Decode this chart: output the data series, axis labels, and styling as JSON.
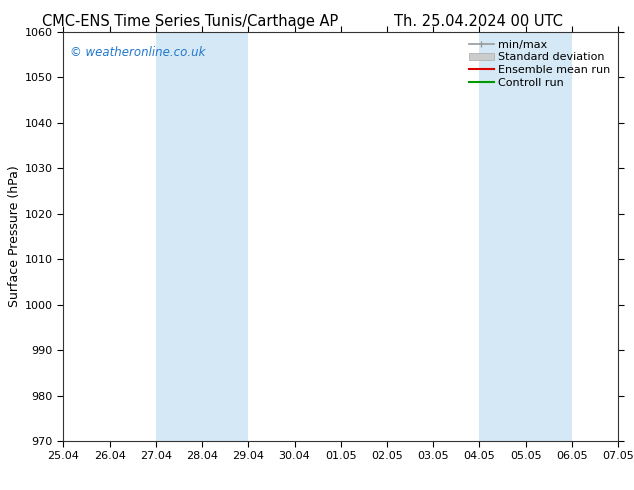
{
  "title_left": "CMC-ENS Time Series Tunis/Carthage AP",
  "title_right": "Th. 25.04.2024 00 UTC",
  "ylabel": "Surface Pressure (hPa)",
  "ylim": [
    970,
    1060
  ],
  "yticks": [
    970,
    980,
    990,
    1000,
    1010,
    1020,
    1030,
    1040,
    1050,
    1060
  ],
  "xlim_start": 0,
  "xlim_end": 12,
  "xtick_labels": [
    "25.04",
    "26.04",
    "27.04",
    "28.04",
    "29.04",
    "30.04",
    "01.05",
    "02.05",
    "03.05",
    "04.05",
    "05.05",
    "06.05",
    "07.05"
  ],
  "shaded_bands": [
    {
      "xstart": 2,
      "xend": 4
    },
    {
      "xstart": 9,
      "xend": 11
    }
  ],
  "shaded_color": "#d4e8f5",
  "watermark": "© weatheronline.co.uk",
  "watermark_color": "#2277cc",
  "legend_items": [
    {
      "label": "min/max",
      "color": "#999999",
      "lw": 1.2
    },
    {
      "label": "Standard deviation",
      "color": "#cccccc",
      "lw": 6
    },
    {
      "label": "Ensemble mean run",
      "color": "#dd0000",
      "lw": 1.5
    },
    {
      "label": "Controll run",
      "color": "#009900",
      "lw": 1.5
    }
  ],
  "bg_color": "#ffffff",
  "plot_bg_color": "#ffffff",
  "spine_color": "#333333",
  "title_fontsize": 10.5,
  "ylabel_fontsize": 9,
  "tick_fontsize": 8,
  "watermark_fontsize": 8.5,
  "legend_fontsize": 8
}
